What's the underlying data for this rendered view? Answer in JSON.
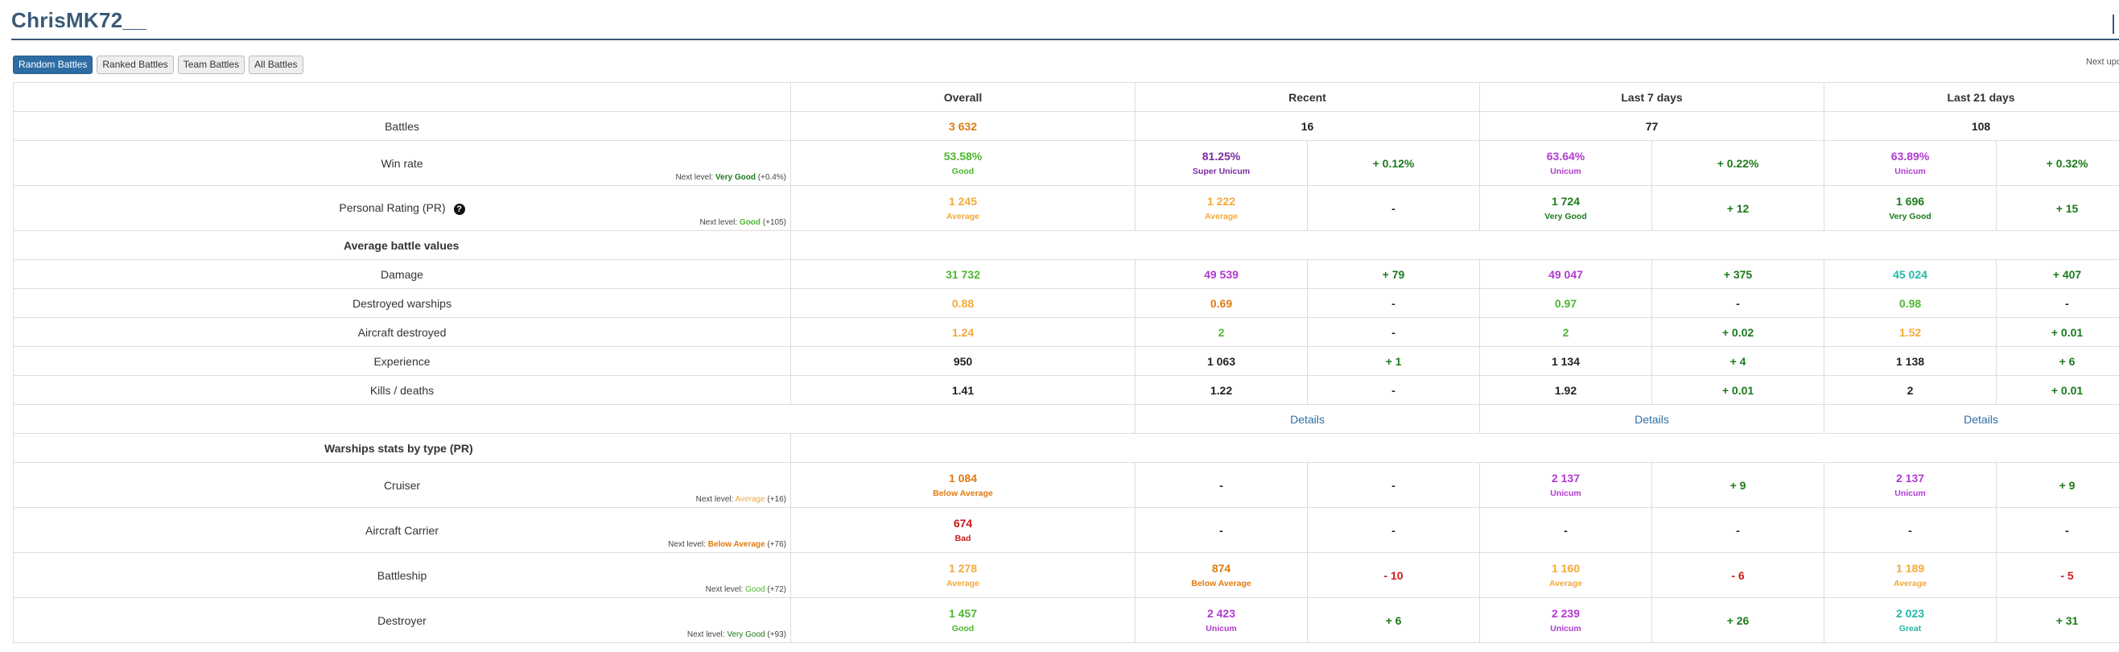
{
  "header": {
    "title": "ChrisMK72__",
    "next_update": "Next upd"
  },
  "tabs": [
    "Random Battles",
    "Ranked Battles",
    "Team Battles",
    "All Battles"
  ],
  "columns": [
    "Overall",
    "Recent",
    "Last 7 days",
    "Last 21 days"
  ],
  "battles": {
    "label": "Battles",
    "overall": "3 632",
    "recent": "16",
    "d7": "77",
    "d21": "108"
  },
  "winrate": {
    "label": "Win rate",
    "next": {
      "prefix": "Next level:",
      "level": "Very Good",
      "delta": "(+0.4%)"
    },
    "overall": {
      "value": "53.58%",
      "sub": "Good"
    },
    "recent": {
      "value": "81.25%",
      "sub": "Super Unicum",
      "delta": "+ 0.12%"
    },
    "d7": {
      "value": "63.64%",
      "sub": "Unicum",
      "delta": "+ 0.22%"
    },
    "d21": {
      "value": "63.89%",
      "sub": "Unicum",
      "delta": "+ 0.32%"
    }
  },
  "pr": {
    "label": "Personal Rating (PR)",
    "help_icon": "?",
    "next": {
      "prefix": "Next level:",
      "level": "Good",
      "delta": "(+105)"
    },
    "overall": {
      "value": "1 245",
      "sub": "Average"
    },
    "recent": {
      "value": "1 222",
      "sub": "Average",
      "delta": "-"
    },
    "d7": {
      "value": "1 724",
      "sub": "Very Good",
      "delta": "+ 12"
    },
    "d21": {
      "value": "1 696",
      "sub": "Very Good",
      "delta": "+ 15"
    }
  },
  "avg_section": "Average battle values",
  "damage": {
    "label": "Damage",
    "overall": "31 732",
    "recent": "49 539",
    "recent_d": "+ 79",
    "d7": "49 047",
    "d7_d": "+ 375",
    "d21": "45 024",
    "d21_d": "+ 407"
  },
  "destroyed": {
    "label": "Destroyed warships",
    "overall": "0.88",
    "recent": "0.69",
    "recent_d": "-",
    "d7": "0.97",
    "d7_d": "-",
    "d21": "0.98",
    "d21_d": "-"
  },
  "aircraft": {
    "label": "Aircraft destroyed",
    "overall": "1.24",
    "recent": "2",
    "recent_d": "-",
    "d7": "2",
    "d7_d": "+ 0.02",
    "d21": "1.52",
    "d21_d": "+ 0.01"
  },
  "experience": {
    "label": "Experience",
    "overall": "950",
    "recent": "1 063",
    "recent_d": "+ 1",
    "d7": "1 134",
    "d7_d": "+ 4",
    "d21": "1 138",
    "d21_d": "+ 6"
  },
  "kd": {
    "label": "Kills / deaths",
    "overall": "1.41",
    "recent": "1.22",
    "recent_d": "-",
    "d7": "1.92",
    "d7_d": "+ 0.01",
    "d21": "2",
    "d21_d": "+ 0.01"
  },
  "details_label": "Details",
  "types_section": "Warships stats by type (PR)",
  "cruiser": {
    "label": "Cruiser",
    "next": {
      "prefix": "Next level:",
      "level": "Average",
      "delta": "(+16)"
    },
    "overall": {
      "value": "1 084",
      "sub": "Below Average"
    },
    "recent": {
      "value": "-",
      "delta": "-"
    },
    "d7": {
      "value": "2 137",
      "sub": "Unicum",
      "delta": "+ 9"
    },
    "d21": {
      "value": "2 137",
      "sub": "Unicum",
      "delta": "+ 9"
    }
  },
  "carrier": {
    "label": "Aircraft Carrier",
    "next": {
      "prefix": "Next level:",
      "level": "Below Average",
      "delta": "(+76)"
    },
    "overall": {
      "value": "674",
      "sub": "Bad"
    },
    "recent": {
      "value": "-",
      "delta": "-"
    },
    "d7": {
      "value": "-",
      "delta": "-"
    },
    "d21": {
      "value": "-",
      "delta": "-"
    }
  },
  "battleship": {
    "label": "Battleship",
    "next": {
      "prefix": "Next level:",
      "level": "Good",
      "delta": "(+72)"
    },
    "overall": {
      "value": "1 278",
      "sub": "Average"
    },
    "recent": {
      "value": "874",
      "sub": "Below Average",
      "delta": "- 10"
    },
    "d7": {
      "value": "1 160",
      "sub": "Average",
      "delta": "- 6"
    },
    "d21": {
      "value": "1 189",
      "sub": "Average",
      "delta": "- 5"
    }
  },
  "destroyer": {
    "label": "Destroyer",
    "next": {
      "prefix": "Next level:",
      "level": "Very Good",
      "delta": "(+93)"
    },
    "overall": {
      "value": "1 457",
      "sub": "Good"
    },
    "recent": {
      "value": "2 423",
      "sub": "Unicum",
      "delta": "+ 6"
    },
    "d7": {
      "value": "2 239",
      "sub": "Unicum",
      "delta": "+ 26"
    },
    "d21": {
      "value": "2 023",
      "sub": "Great",
      "delta": "+ 31"
    }
  },
  "colors": {
    "title": "#3a5a78",
    "active_tab": "#2e6da4",
    "bad": "#cc1a1a",
    "below_average": "#e07a10",
    "average": "#f2a93a",
    "good": "#4db830",
    "very_good": "#1c7a1c",
    "great": "#23b9a8",
    "unicum": "#b13ad0",
    "super_unicum": "#7a2ba0"
  }
}
